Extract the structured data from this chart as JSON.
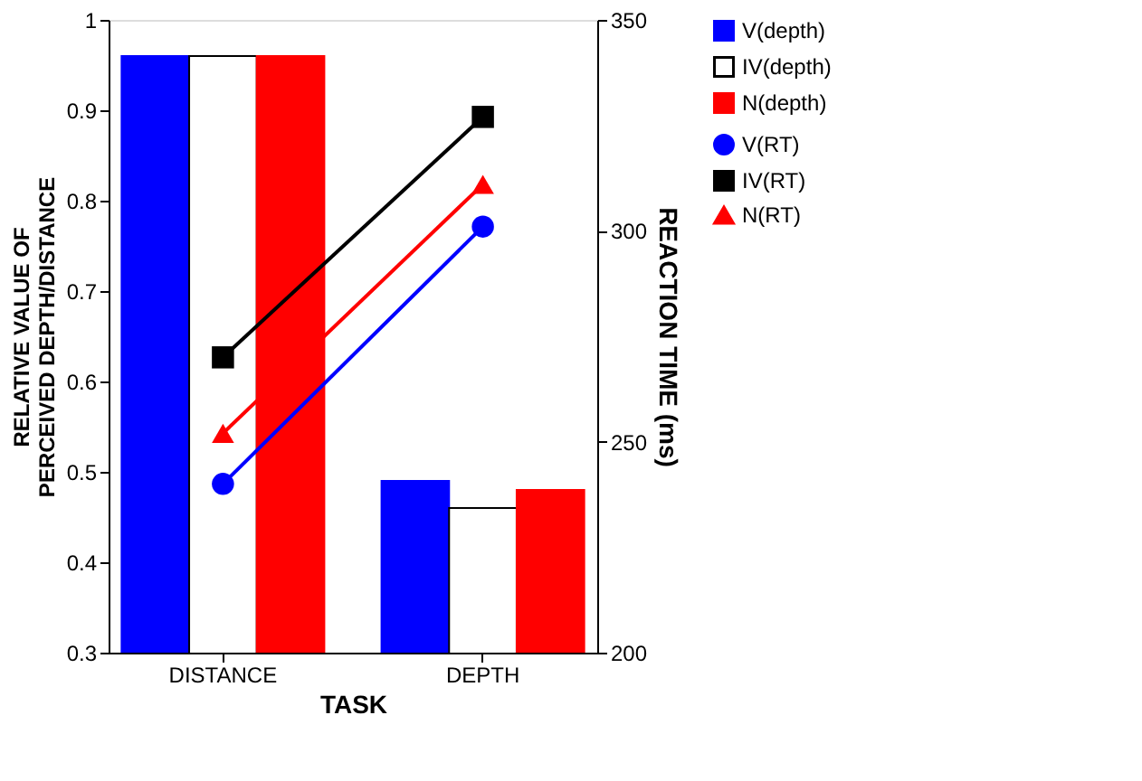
{
  "chart_data": {
    "type": "bar",
    "categories": [
      "DISTANCE",
      "DEPTH"
    ],
    "xlabel": "TASK",
    "ylabel": "RELATIVE VALUE OF\nPERCEIVED DEPTH/DISTANCE",
    "y2label": "REACTION TIME (ms)",
    "ylim": [
      0.3,
      1
    ],
    "yticks": [
      0.3,
      0.4,
      0.5,
      0.6,
      0.7,
      0.8,
      0.9,
      {
        "value": 1,
        "label": "1"
      }
    ],
    "y2lim": [
      200,
      350
    ],
    "y2ticks": [
      200,
      250,
      300,
      350
    ],
    "grid": false,
    "legend": "right",
    "series": [
      {
        "name": "V(depth)",
        "color": "#0000ff",
        "values": [
          0.96,
          0.49
        ]
      },
      {
        "name": "IV(depth)",
        "color": "#ffffff",
        "values": [
          0.96,
          0.46
        ]
      },
      {
        "name": "N(depth)",
        "color": "#ff0000",
        "values": [
          0.96,
          0.48
        ]
      },
      {
        "name": "V(RT)",
        "type": "line",
        "axis": "y2",
        "marker": "circle",
        "color": "#0000ff",
        "values": [
          240,
          301
        ]
      },
      {
        "name": "IV(RT)",
        "type": "line",
        "axis": "y2",
        "marker": "square",
        "color": "#000000",
        "values": [
          270,
          327
        ]
      },
      {
        "name": "N(RT)",
        "type": "line",
        "axis": "y2",
        "marker": "triangle",
        "color": "#ff0000",
        "values": [
          252,
          311
        ]
      }
    ]
  }
}
